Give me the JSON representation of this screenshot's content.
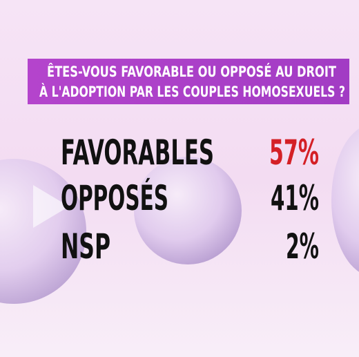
{
  "header": {
    "title_lines": [
      "ÊTES-VOUS FAVORABLE OU OPPOSÉ AU DROIT",
      "À L'ADOPTION PAR LES COUPLES HOMOSEXUELS ?"
    ]
  },
  "rows": [
    {
      "label": "FAVORABLES",
      "value": "57%"
    },
    {
      "label": "OPPOSÉS",
      "value": "41%"
    },
    {
      "label": "NSP",
      "value": "2%"
    }
  ]
}
